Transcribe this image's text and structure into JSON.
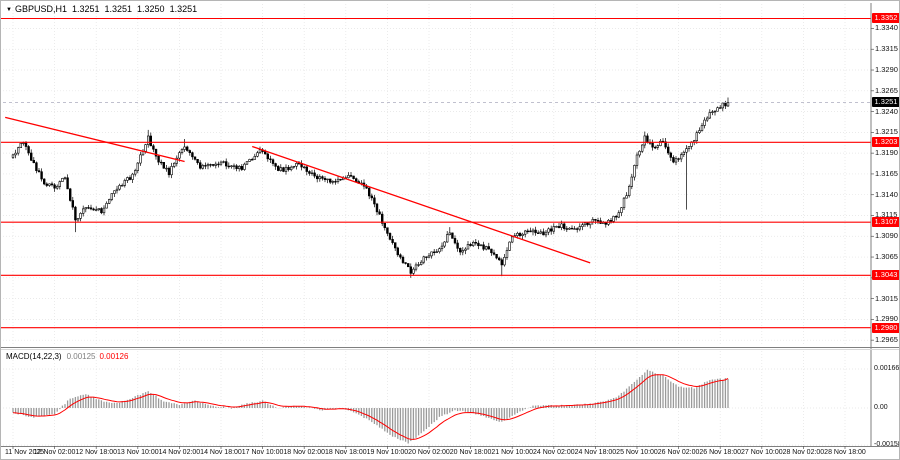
{
  "header": {
    "symbol_period": "GBPUSD,H1",
    "open": "1.3251",
    "high": "1.3251",
    "low": "1.3250",
    "close": "1.3251"
  },
  "indicator": {
    "label": "MACD(14,22,3)",
    "value_main": "0.00125",
    "value_signal": "0.00126"
  },
  "colors": {
    "background": "#ffffff",
    "grid": "#e3e3e3",
    "candle_outline": "#000000",
    "bull_fill": "#ffffff",
    "bear_fill": "#000000",
    "level_red": "#ff0000",
    "price_badge_bg": "#000000",
    "badge_text": "#ffffff",
    "macd_hist": "#9a9a9a",
    "macd_signal": "#ff0000",
    "axis_line": "#7f7f7f",
    "bid_line": "#b8b8c8"
  },
  "price_axis": {
    "labels": [
      "1.3340",
      "1.3315",
      "1.3290",
      "1.3265",
      "1.3240",
      "1.3215",
      "1.3190",
      "1.3165",
      "1.3140",
      "1.3115",
      "1.3090",
      "1.3065",
      "1.3040",
      "1.3015",
      "1.2990",
      "1.2965"
    ]
  },
  "time_axis": {
    "labels": [
      "11 Nov 2025",
      "12 Nov 02:00",
      "12 Nov 18:00",
      "13 Nov 10:00",
      "14 Nov 02:00",
      "14 Nov 18:00",
      "17 Nov 10:00",
      "18 Nov 02:00",
      "18 Nov 18:00",
      "19 Nov 10:00",
      "20 Nov 02:00",
      "20 Nov 18:00",
      "21 Nov 10:00",
      "24 Nov 02:00",
      "24 Nov 18:00",
      "25 Nov 10:00",
      "26 Nov 02:00",
      "26 Nov 18:00",
      "27 Nov 10:00",
      "28 Nov 02:00",
      "28 Nov 18:00"
    ]
  },
  "macd_axis": {
    "labels": [
      "0.00166",
      "0.00",
      "-0.00158"
    ],
    "values": [
      0.00166,
      0,
      -0.00158
    ]
  },
  "current_price": {
    "value": 1.3251,
    "label": "1.3251"
  },
  "levels": [
    {
      "price": 1.3352,
      "label": "1.3352"
    },
    {
      "price": 1.3203,
      "label": "1.3203"
    },
    {
      "price": 1.3107,
      "label": "1.3107"
    },
    {
      "price": 1.3043,
      "label": "1.3043"
    },
    {
      "price": 1.298,
      "label": "1.2980"
    }
  ],
  "trendlines": [
    {
      "from": {
        "i": -3,
        "p": 1.3233
      },
      "to": {
        "i": 66,
        "p": 1.318
      }
    },
    {
      "from": {
        "i": 92,
        "p": 1.3198
      },
      "to": {
        "i": 222,
        "p": 1.3058
      }
    }
  ],
  "chart_data": {
    "type": "candlestick",
    "title": "GBPUSD H1 with MACD(14,22,3)",
    "candle_count": 276,
    "price_range": [
      1.2958,
      1.3355
    ],
    "final_close": 1.3251,
    "close_waypoints": [
      [
        0,
        1.3188
      ],
      [
        4,
        1.3203
      ],
      [
        8,
        1.3176
      ],
      [
        12,
        1.3155
      ],
      [
        16,
        1.3149
      ],
      [
        20,
        1.3161
      ],
      [
        24,
        1.311
      ],
      [
        28,
        1.3126
      ],
      [
        34,
        1.3121
      ],
      [
        40,
        1.3149
      ],
      [
        46,
        1.3163
      ],
      [
        52,
        1.3208
      ],
      [
        56,
        1.3181
      ],
      [
        60,
        1.3166
      ],
      [
        66,
        1.3199
      ],
      [
        72,
        1.3172
      ],
      [
        80,
        1.3179
      ],
      [
        88,
        1.3171
      ],
      [
        95,
        1.3194
      ],
      [
        102,
        1.3169
      ],
      [
        110,
        1.3176
      ],
      [
        116,
        1.3161
      ],
      [
        124,
        1.3156
      ],
      [
        130,
        1.3164
      ],
      [
        136,
        1.3147
      ],
      [
        142,
        1.3108
      ],
      [
        148,
        1.3068
      ],
      [
        153,
        1.3047
      ],
      [
        158,
        1.3063
      ],
      [
        164,
        1.3076
      ],
      [
        168,
        1.3094
      ],
      [
        172,
        1.3073
      ],
      [
        178,
        1.3083
      ],
      [
        184,
        1.3071
      ],
      [
        188,
        1.3057
      ],
      [
        192,
        1.3089
      ],
      [
        198,
        1.3098
      ],
      [
        204,
        1.3093
      ],
      [
        210,
        1.3103
      ],
      [
        216,
        1.3099
      ],
      [
        222,
        1.3108
      ],
      [
        228,
        1.3106
      ],
      [
        232,
        1.3113
      ],
      [
        236,
        1.3141
      ],
      [
        240,
        1.3186
      ],
      [
        243,
        1.321
      ],
      [
        246,
        1.3196
      ],
      [
        250,
        1.3205
      ],
      [
        254,
        1.3179
      ],
      [
        258,
        1.3191
      ],
      [
        262,
        1.3206
      ],
      [
        266,
        1.3231
      ],
      [
        270,
        1.3243
      ],
      [
        275,
        1.3251
      ]
    ],
    "wick_events": [
      {
        "i": 24,
        "low": 1.3095
      },
      {
        "i": 52,
        "high": 1.3218
      },
      {
        "i": 66,
        "high": 1.3207
      },
      {
        "i": 153,
        "low": 1.304
      },
      {
        "i": 168,
        "high": 1.3101
      },
      {
        "i": 188,
        "low": 1.3042
      },
      {
        "i": 243,
        "high": 1.3216
      },
      {
        "i": 259,
        "low": 1.3122
      },
      {
        "i": 275,
        "high": 1.3257
      }
    ],
    "macd": {
      "range": [
        -0.00158,
        0.00166
      ],
      "main_current": 0.00125,
      "signal_current": 0.00126,
      "waypoints": [
        [
          0,
          -0.0002
        ],
        [
          8,
          -0.0004
        ],
        [
          16,
          -0.00025
        ],
        [
          22,
          0.0004
        ],
        [
          28,
          0.0006
        ],
        [
          34,
          0.0003
        ],
        [
          40,
          0.0002
        ],
        [
          46,
          0.00045
        ],
        [
          52,
          0.0007
        ],
        [
          58,
          0.0003
        ],
        [
          64,
          0.00015
        ],
        [
          70,
          0.0003
        ],
        [
          76,
          0.0001
        ],
        [
          84,
          0.0
        ],
        [
          90,
          0.0002
        ],
        [
          96,
          0.0003
        ],
        [
          102,
          0.0
        ],
        [
          110,
          0.0001
        ],
        [
          118,
          -0.0001
        ],
        [
          126,
          0.0
        ],
        [
          132,
          -0.0002
        ],
        [
          138,
          -0.0006
        ],
        [
          146,
          -0.0012
        ],
        [
          152,
          -0.0015
        ],
        [
          158,
          -0.001
        ],
        [
          164,
          -0.0004
        ],
        [
          170,
          -0.0001
        ],
        [
          176,
          -0.0002
        ],
        [
          182,
          -0.0004
        ],
        [
          188,
          -0.0006
        ],
        [
          194,
          -0.0002
        ],
        [
          200,
          0.0001
        ],
        [
          208,
          0.0001
        ],
        [
          216,
          0.00012
        ],
        [
          224,
          0.0002
        ],
        [
          232,
          0.00045
        ],
        [
          238,
          0.001
        ],
        [
          244,
          0.0016
        ],
        [
          250,
          0.0014
        ],
        [
          256,
          0.0009
        ],
        [
          262,
          0.00085
        ],
        [
          268,
          0.0012
        ],
        [
          275,
          0.00125
        ]
      ]
    }
  }
}
